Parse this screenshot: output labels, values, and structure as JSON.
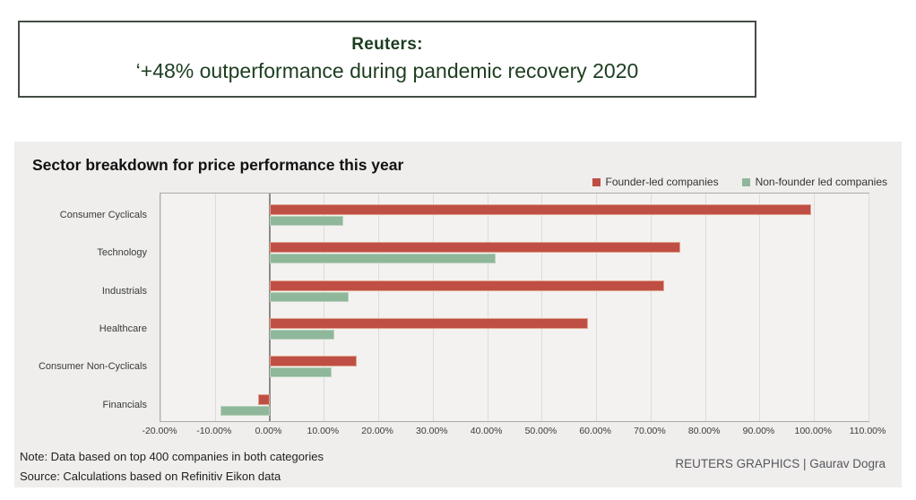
{
  "header": {
    "title": "Reuters:",
    "subtitle": "‘+48% outperformance during pandemic recovery 2020"
  },
  "chart": {
    "title": "Sector breakdown for price performance this year"
  },
  "chart_data": {
    "type": "bar",
    "orientation": "horizontal",
    "title": "Sector breakdown for price performance this year",
    "categories": [
      "Consumer Cyclicals",
      "Technology",
      "Industrials",
      "Healthcare",
      "Consumer Non-Cyclicals",
      "Financials"
    ],
    "series": [
      {
        "name": "Founder-led companies",
        "color": "#bf4f45",
        "values": [
          99.5,
          75.5,
          72.5,
          58.5,
          16.0,
          -2.0
        ]
      },
      {
        "name": "Non-founder led companies",
        "color": "#8fb79a",
        "values": [
          13.5,
          41.5,
          14.5,
          12.0,
          11.5,
          -9.0
        ]
      }
    ],
    "unit": "%",
    "xlim": [
      -20,
      110
    ],
    "x_tick_labels": [
      "-20.00%",
      "-10.00%",
      "0.00%",
      "10.00%",
      "20.00%",
      "30.00%",
      "40.00%",
      "50.00%",
      "60.00%",
      "70.00%",
      "80.00%",
      "90.00%",
      "100.00%",
      "110.00%"
    ],
    "grid": true,
    "legend_position": "top-right"
  },
  "footer": {
    "note": "Note: Data based on top 400 companies in both categories",
    "source": "Source: Calculations based on Refinitiv Eikon data",
    "credit": "REUTERS GRAPHICS | Gaurav Dogra"
  },
  "colors": {
    "founder_led": "#bf4f45",
    "non_founder_led": "#8fb79a",
    "panel_background": "#efeeed",
    "header_text": "#1d3e20"
  }
}
